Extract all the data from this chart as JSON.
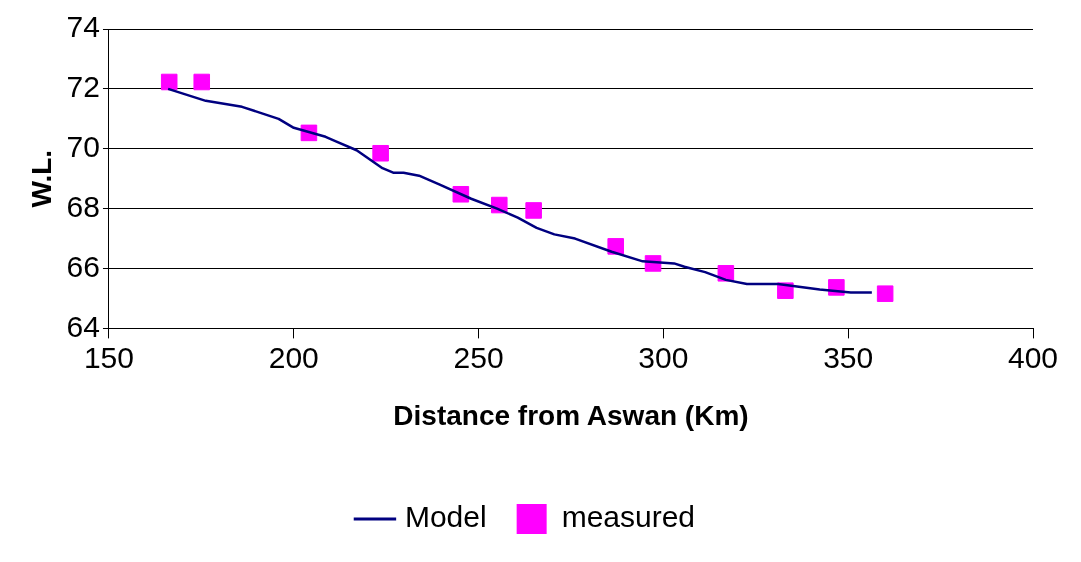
{
  "chart_data": {
    "type": "line",
    "xlabel": "Distance from Aswan (Km)",
    "ylabel": "W.L.",
    "xlim": [
      150,
      400
    ],
    "xticks": [
      150,
      200,
      250,
      300,
      350,
      400
    ],
    "ylim": [
      64,
      74
    ],
    "yticks": [
      64,
      66,
      68,
      70,
      72,
      74
    ],
    "grid": "y",
    "legend": "bottom",
    "series": [
      {
        "name": "Model",
        "color": "#000080",
        "marker": "none",
        "line_style": "solid",
        "x": [
          166,
          176.2,
          186,
          195.9,
          200,
          208.6,
          211.4,
          217,
          224,
          226.9,
          229.7,
          233.9,
          239.5,
          248,
          255,
          260.6,
          265.7,
          270.5,
          276.1,
          286,
          294.4,
          302.9,
          305.7,
          311.3,
          316.9,
          322.6,
          331,
          342.3,
          350.7,
          356.4
        ],
        "values": [
          72.0,
          71.6,
          71.4,
          71.0,
          70.7,
          70.4,
          70.25,
          69.95,
          69.35,
          69.2,
          69.2,
          69.1,
          68.8,
          68.33,
          68.0,
          67.7,
          67.36,
          67.14,
          67.0,
          66.56,
          66.24,
          66.17,
          66.06,
          65.88,
          65.62,
          65.48,
          65.48,
          65.3,
          65.2,
          65.2
        ]
      },
      {
        "name": "measured",
        "type": "scatter",
        "color": "#ff00ff",
        "marker": "square",
        "x": [
          166.3,
          175.1,
          204.1,
          223.5,
          245.2,
          255.6,
          264.9,
          287.1,
          297.2,
          316.9,
          333,
          346.8,
          360
        ],
        "values": [
          72.23,
          72.23,
          70.53,
          69.85,
          68.48,
          68.12,
          67.94,
          66.74,
          66.17,
          65.84,
          65.26,
          65.37,
          65.16
        ]
      }
    ]
  }
}
